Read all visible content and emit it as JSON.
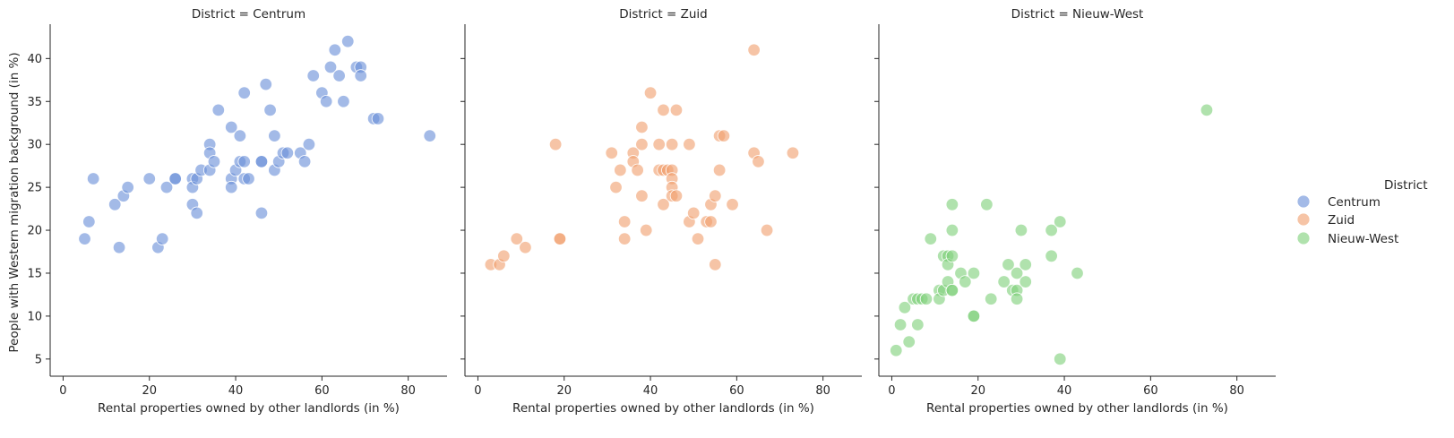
{
  "chart_data": {
    "type": "scatter",
    "facet_variable": "District",
    "xlabel": "Rental properties owned by other landlords (in %)",
    "ylabel": "People with Western migration background (in %)",
    "xlim": [
      -3,
      89
    ],
    "ylim": [
      3,
      44
    ],
    "xticks": [
      0,
      20,
      40,
      60,
      80
    ],
    "yticks": [
      5,
      10,
      15,
      20,
      25,
      30,
      35,
      40
    ],
    "legend": {
      "title": "District",
      "placement": "right",
      "items": [
        {
          "label": "Centrum",
          "color": "#6a8fd8"
        },
        {
          "label": "Zuid",
          "color": "#f0a070"
        },
        {
          "label": "Nieuw-West",
          "color": "#7fd07a"
        }
      ]
    },
    "panels": [
      {
        "title": "District = Centrum",
        "series": "Centrum",
        "color": "#6a8fd8",
        "points": [
          [
            5,
            19
          ],
          [
            6,
            21
          ],
          [
            7,
            26
          ],
          [
            12,
            23
          ],
          [
            13,
            18
          ],
          [
            14,
            24
          ],
          [
            15,
            25
          ],
          [
            20,
            26
          ],
          [
            22,
            18
          ],
          [
            23,
            19
          ],
          [
            24,
            25
          ],
          [
            26,
            26
          ],
          [
            26,
            26
          ],
          [
            30,
            26
          ],
          [
            30,
            25
          ],
          [
            30,
            23
          ],
          [
            31,
            22
          ],
          [
            31,
            26
          ],
          [
            32,
            27
          ],
          [
            34,
            30
          ],
          [
            34,
            29
          ],
          [
            34,
            27
          ],
          [
            35,
            28
          ],
          [
            36,
            34
          ],
          [
            39,
            32
          ],
          [
            39,
            26
          ],
          [
            39,
            25
          ],
          [
            40,
            27
          ],
          [
            41,
            31
          ],
          [
            41,
            28
          ],
          [
            42,
            36
          ],
          [
            42,
            28
          ],
          [
            42,
            26
          ],
          [
            43,
            26
          ],
          [
            46,
            28
          ],
          [
            46,
            28
          ],
          [
            46,
            22
          ],
          [
            47,
            37
          ],
          [
            48,
            34
          ],
          [
            49,
            31
          ],
          [
            49,
            27
          ],
          [
            50,
            28
          ],
          [
            51,
            29
          ],
          [
            52,
            29
          ],
          [
            55,
            29
          ],
          [
            56,
            28
          ],
          [
            57,
            30
          ],
          [
            58,
            38
          ],
          [
            60,
            36
          ],
          [
            61,
            35
          ],
          [
            62,
            39
          ],
          [
            63,
            41
          ],
          [
            64,
            38
          ],
          [
            65,
            35
          ],
          [
            66,
            42
          ],
          [
            68,
            39
          ],
          [
            69,
            39
          ],
          [
            69,
            38
          ],
          [
            72,
            33
          ],
          [
            73,
            33
          ],
          [
            85,
            31
          ]
        ]
      },
      {
        "title": "District = Zuid",
        "series": "Zuid",
        "color": "#f0a070",
        "points": [
          [
            3,
            16
          ],
          [
            5,
            16
          ],
          [
            6,
            17
          ],
          [
            9,
            19
          ],
          [
            11,
            18
          ],
          [
            18,
            30
          ],
          [
            19,
            19
          ],
          [
            19,
            19
          ],
          [
            31,
            29
          ],
          [
            32,
            25
          ],
          [
            33,
            27
          ],
          [
            34,
            21
          ],
          [
            34,
            19
          ],
          [
            36,
            29
          ],
          [
            36,
            28
          ],
          [
            37,
            27
          ],
          [
            38,
            32
          ],
          [
            38,
            30
          ],
          [
            38,
            24
          ],
          [
            39,
            20
          ],
          [
            40,
            36
          ],
          [
            42,
            30
          ],
          [
            42,
            27
          ],
          [
            43,
            34
          ],
          [
            43,
            27
          ],
          [
            43,
            23
          ],
          [
            44,
            27
          ],
          [
            45,
            30
          ],
          [
            45,
            27
          ],
          [
            45,
            26
          ],
          [
            45,
            25
          ],
          [
            45,
            24
          ],
          [
            46,
            34
          ],
          [
            46,
            24
          ],
          [
            49,
            30
          ],
          [
            49,
            21
          ],
          [
            50,
            22
          ],
          [
            51,
            19
          ],
          [
            53,
            21
          ],
          [
            54,
            23
          ],
          [
            54,
            21
          ],
          [
            55,
            24
          ],
          [
            55,
            16
          ],
          [
            56,
            31
          ],
          [
            56,
            27
          ],
          [
            57,
            31
          ],
          [
            59,
            23
          ],
          [
            64,
            41
          ],
          [
            64,
            29
          ],
          [
            65,
            28
          ],
          [
            67,
            20
          ],
          [
            73,
            29
          ]
        ]
      },
      {
        "title": "District = Nieuw-West",
        "series": "Nieuw-West",
        "color": "#7fd07a",
        "points": [
          [
            1,
            6
          ],
          [
            2,
            9
          ],
          [
            3,
            11
          ],
          [
            4,
            7
          ],
          [
            5,
            12
          ],
          [
            6,
            12
          ],
          [
            6,
            9
          ],
          [
            7,
            12
          ],
          [
            8,
            12
          ],
          [
            9,
            19
          ],
          [
            11,
            13
          ],
          [
            11,
            12
          ],
          [
            12,
            17
          ],
          [
            12,
            13
          ],
          [
            13,
            17
          ],
          [
            13,
            16
          ],
          [
            13,
            14
          ],
          [
            14,
            23
          ],
          [
            14,
            20
          ],
          [
            14,
            17
          ],
          [
            14,
            13
          ],
          [
            14,
            13
          ],
          [
            16,
            15
          ],
          [
            17,
            14
          ],
          [
            19,
            15
          ],
          [
            19,
            10
          ],
          [
            19,
            10
          ],
          [
            22,
            23
          ],
          [
            23,
            12
          ],
          [
            26,
            14
          ],
          [
            27,
            16
          ],
          [
            28,
            13
          ],
          [
            29,
            15
          ],
          [
            29,
            13
          ],
          [
            29,
            12
          ],
          [
            30,
            20
          ],
          [
            31,
            16
          ],
          [
            31,
            14
          ],
          [
            37,
            20
          ],
          [
            37,
            17
          ],
          [
            39,
            21
          ],
          [
            39,
            5
          ],
          [
            43,
            15
          ],
          [
            73,
            34
          ]
        ]
      }
    ]
  }
}
